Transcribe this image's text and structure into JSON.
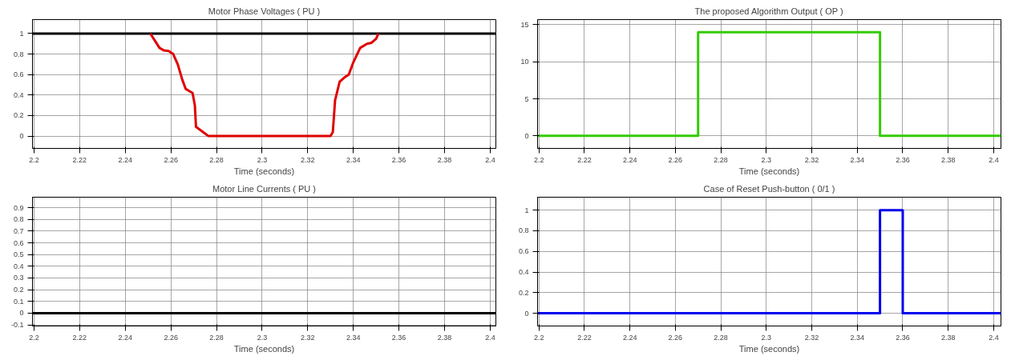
{
  "chart_data": [
    {
      "type": "line",
      "title": "Motor Phase Voltages ( PU )",
      "xlabel": "Time (seconds)",
      "xlim": [
        2.1993,
        2.4025
      ],
      "ylim": [
        -0.12,
        1.136
      ],
      "xticks": [
        2.2,
        2.22,
        2.24,
        2.26,
        2.28,
        2.3,
        2.32,
        2.34,
        2.36,
        2.38,
        2.4
      ],
      "yticks": [
        0,
        0.2,
        0.4,
        0.6,
        0.8,
        1
      ],
      "grid": true,
      "series": [
        {
          "color": "#000000",
          "x": [
            2.1993,
            2.4025
          ],
          "values": [
            1,
            1
          ]
        },
        {
          "color": "#e00000",
          "x": [
            2.251,
            2.253,
            2.255,
            2.257,
            2.259,
            2.261,
            2.263,
            2.265,
            2.2665,
            2.268,
            2.2695,
            2.2705,
            2.271,
            2.2765,
            2.33,
            2.331,
            2.332,
            2.334,
            2.336,
            2.338,
            2.34,
            2.343,
            2.346,
            2.348,
            2.35,
            2.351
          ],
          "values": [
            1,
            0.93,
            0.86,
            0.835,
            0.83,
            0.8,
            0.7,
            0.55,
            0.46,
            0.44,
            0.42,
            0.3,
            0.09,
            0,
            0,
            0.04,
            0.35,
            0.53,
            0.57,
            0.6,
            0.72,
            0.86,
            0.9,
            0.91,
            0.95,
            1
          ]
        }
      ]
    },
    {
      "type": "line",
      "title": "The proposed Algorithm Output ( OP )",
      "xlabel": "Time (seconds)",
      "xlim": [
        2.1994,
        2.4032
      ],
      "ylim": [
        -1.7,
        15.7
      ],
      "xticks": [
        2.2,
        2.22,
        2.24,
        2.26,
        2.28,
        2.3,
        2.32,
        2.34,
        2.36,
        2.38,
        2.4
      ],
      "yticks": [
        0,
        5,
        10,
        15
      ],
      "grid": true,
      "series": [
        {
          "color": "#33cc00",
          "x": [
            2.1994,
            2.27,
            2.27,
            2.35,
            2.35,
            2.4032
          ],
          "values": [
            0,
            0,
            14,
            14,
            0,
            0
          ]
        }
      ]
    },
    {
      "type": "line",
      "title": "Motor Line Currents ( PU )",
      "xlabel": "Time (seconds)",
      "xlim": [
        2.1993,
        2.4025
      ],
      "ylim": [
        -0.11,
        0.99
      ],
      "xticks": [
        2.2,
        2.22,
        2.24,
        2.26,
        2.28,
        2.3,
        2.32,
        2.34,
        2.36,
        2.38,
        2.4
      ],
      "yticks": [
        -0.1,
        0,
        0.1,
        0.2,
        0.3,
        0.4,
        0.5,
        0.6,
        0.7,
        0.8,
        0.9
      ],
      "grid": true,
      "series": [
        {
          "color": "#000000",
          "x": [
            2.1993,
            2.4025
          ],
          "values": [
            0,
            0
          ]
        }
      ]
    },
    {
      "type": "line",
      "title": "Case of Reset Push-button ( 0/1 )",
      "xlabel": "Time (seconds)",
      "xlim": [
        2.1994,
        2.4032
      ],
      "ylim": [
        -0.124,
        1.126
      ],
      "xticks": [
        2.2,
        2.22,
        2.24,
        2.26,
        2.28,
        2.3,
        2.32,
        2.34,
        2.36,
        2.38,
        2.4
      ],
      "yticks": [
        0,
        0.2,
        0.4,
        0.6,
        0.8,
        1
      ],
      "grid": true,
      "series": [
        {
          "color": "#0000ee",
          "x": [
            2.1994,
            2.35,
            2.35,
            2.36,
            2.36,
            2.4032
          ],
          "values": [
            0,
            0,
            1,
            1,
            0,
            0
          ]
        }
      ]
    }
  ]
}
